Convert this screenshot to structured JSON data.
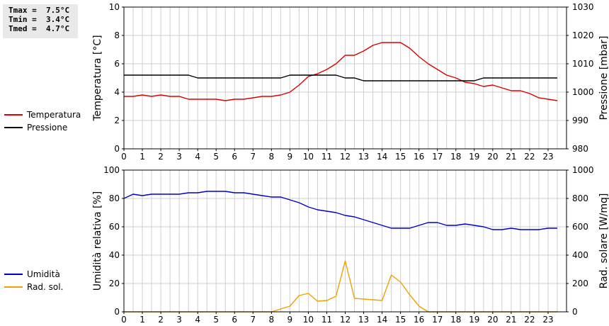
{
  "stats": {
    "tmax": "Tmax =  7.5°C",
    "tmin": "Tmin =  3.4°C",
    "tmed": "Tmed =  4.7°C"
  },
  "chart_data": [
    {
      "type": "line",
      "x_ticks": [
        "0",
        "1",
        "2",
        "3",
        "4",
        "5",
        "6",
        "7",
        "8",
        "9",
        "10",
        "11",
        "12",
        "13",
        "14",
        "15",
        "16",
        "17",
        "18",
        "19",
        "20",
        "21",
        "22",
        "23"
      ],
      "xlim": [
        0,
        24
      ],
      "ylabel_left": "Temperatura [°C]",
      "ylabel_right": "Pressione [mbar]",
      "ylim_left": [
        0,
        10
      ],
      "ylim_right": [
        980,
        1030
      ],
      "yticks_left": [
        "0",
        "2",
        "4",
        "6",
        "8",
        "10"
      ],
      "yticks_right": [
        "980",
        "990",
        "1000",
        "1010",
        "1020",
        "1030"
      ],
      "grid": true,
      "legend_position": "left",
      "series": [
        {
          "name": "Temperatura",
          "axis": "left",
          "color": "#dd0000",
          "x": [
            0,
            0.5,
            1,
            1.5,
            2,
            2.5,
            3,
            3.5,
            4,
            4.5,
            5,
            5.5,
            6,
            6.5,
            7,
            7.5,
            8,
            8.5,
            9,
            9.5,
            10,
            10.5,
            11,
            11.5,
            12,
            12.5,
            13,
            13.5,
            14,
            14.5,
            15,
            15.5,
            16,
            16.5,
            17,
            17.5,
            18,
            18.5,
            19,
            19.5,
            20,
            20.5,
            21,
            21.5,
            22,
            22.5,
            23,
            23.5
          ],
          "y": [
            3.7,
            3.7,
            3.8,
            3.7,
            3.8,
            3.7,
            3.7,
            3.5,
            3.5,
            3.5,
            3.5,
            3.4,
            3.5,
            3.5,
            3.6,
            3.7,
            3.7,
            3.8,
            4.0,
            4.5,
            5.1,
            5.3,
            5.6,
            6.0,
            6.6,
            6.6,
            6.9,
            7.3,
            7.5,
            7.5,
            7.5,
            7.1,
            6.5,
            6.0,
            5.6,
            5.2,
            5.0,
            4.7,
            4.6,
            4.4,
            4.5,
            4.3,
            4.1,
            4.1,
            3.9,
            3.6,
            3.5,
            3.4
          ]
        },
        {
          "name": "Pressione",
          "axis": "right",
          "color": "#000000",
          "x": [
            0,
            0.5,
            1,
            1.5,
            2,
            2.5,
            3,
            3.5,
            4,
            4.5,
            5,
            5.5,
            6,
            6.5,
            7,
            7.5,
            8,
            8.5,
            9,
            9.5,
            10,
            10.5,
            11,
            11.5,
            12,
            12.5,
            13,
            13.5,
            14,
            14.5,
            15,
            15.5,
            16,
            16.5,
            17,
            17.5,
            18,
            18.5,
            19,
            19.5,
            20,
            20.5,
            21,
            21.5,
            22,
            22.5,
            23,
            23.5
          ],
          "y": [
            1006,
            1006,
            1006,
            1006,
            1006,
            1006,
            1006,
            1006,
            1005,
            1005,
            1005,
            1005,
            1005,
            1005,
            1005,
            1005,
            1005,
            1005,
            1006,
            1006,
            1006,
            1006,
            1006,
            1006,
            1005,
            1005,
            1004,
            1004,
            1004,
            1004,
            1004,
            1004,
            1004,
            1004,
            1004,
            1004,
            1004,
            1004,
            1004,
            1005,
            1005,
            1005,
            1005,
            1005,
            1005,
            1005,
            1005,
            1005
          ]
        }
      ]
    },
    {
      "type": "line",
      "x_ticks": [
        "0",
        "1",
        "2",
        "3",
        "4",
        "5",
        "6",
        "7",
        "8",
        "9",
        "10",
        "11",
        "12",
        "13",
        "14",
        "15",
        "16",
        "17",
        "18",
        "19",
        "20",
        "21",
        "22",
        "23"
      ],
      "xlim": [
        0,
        24
      ],
      "ylabel_left": "Umidità relativa [%]",
      "ylabel_right": "Rad. solare [W/mq]",
      "ylim_left": [
        0,
        100
      ],
      "ylim_right": [
        0,
        1000
      ],
      "yticks_left": [
        "0",
        "20",
        "40",
        "60",
        "80",
        "100"
      ],
      "yticks_right": [
        "0",
        "200",
        "400",
        "600",
        "800",
        "1000"
      ],
      "grid": true,
      "legend_position": "left",
      "series": [
        {
          "name": "Umidità",
          "axis": "left",
          "color": "#0000cc",
          "x": [
            0,
            0.5,
            1,
            1.5,
            2,
            2.5,
            3,
            3.5,
            4,
            4.5,
            5,
            5.5,
            6,
            6.5,
            7,
            7.5,
            8,
            8.5,
            9,
            9.5,
            10,
            10.5,
            11,
            11.5,
            12,
            12.5,
            13,
            13.5,
            14,
            14.5,
            15,
            15.5,
            16,
            16.5,
            17,
            17.5,
            18,
            18.5,
            19,
            19.5,
            20,
            20.5,
            21,
            21.5,
            22,
            22.5,
            23,
            23.5
          ],
          "y": [
            80,
            83,
            82,
            83,
            83,
            83,
            83,
            84,
            84,
            85,
            85,
            85,
            84,
            84,
            83,
            82,
            81,
            81,
            79,
            77,
            74,
            72,
            71,
            70,
            68,
            67,
            65,
            63,
            61,
            59,
            59,
            59,
            61,
            63,
            63,
            61,
            61,
            62,
            61,
            60,
            58,
            58,
            59,
            58,
            58,
            58,
            59,
            59
          ]
        },
        {
          "name": "Rad. sol.",
          "axis": "right",
          "color": "#f0a000",
          "x": [
            0,
            0.5,
            1,
            1.5,
            2,
            2.5,
            3,
            3.5,
            4,
            4.5,
            5,
            5.5,
            6,
            6.5,
            7,
            7.5,
            8,
            8.5,
            9,
            9.5,
            10,
            10.5,
            11,
            11.5,
            12,
            12.5,
            13,
            13.5,
            14,
            14.5,
            15,
            15.5,
            16,
            16.5,
            17,
            17.5,
            18,
            18.5,
            19,
            19.5,
            20,
            20.5,
            21,
            21.5,
            22,
            22.5,
            23,
            23.5
          ],
          "y": [
            0,
            0,
            0,
            0,
            0,
            0,
            0,
            0,
            0,
            0,
            0,
            0,
            0,
            0,
            0,
            0,
            0,
            20,
            40,
            115,
            130,
            75,
            80,
            110,
            360,
            95,
            90,
            85,
            80,
            260,
            210,
            120,
            40,
            0,
            0,
            0,
            0,
            0,
            0,
            0,
            0,
            0,
            0,
            0,
            0,
            0,
            0,
            0
          ]
        }
      ]
    }
  ]
}
